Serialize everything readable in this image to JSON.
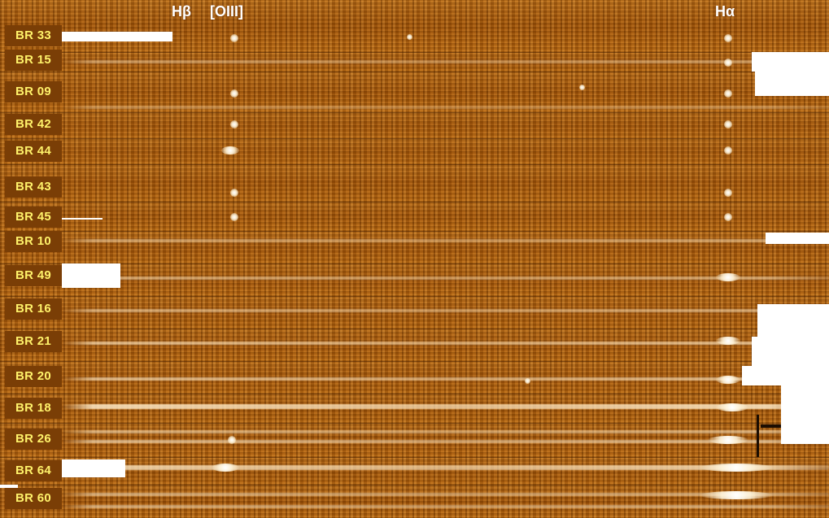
{
  "emission_lines": [
    {
      "name": "Hβ"
    },
    {
      "name": "[OIII]"
    },
    {
      "name": "Hα"
    }
  ],
  "spectra": [
    {
      "label": "BR 33"
    },
    {
      "label": "BR 15"
    },
    {
      "label": "BR 09"
    },
    {
      "label": "BR 42"
    },
    {
      "label": "BR 44"
    },
    {
      "label": "BR 43"
    },
    {
      "label": "BR 45"
    },
    {
      "label": "BR 10"
    },
    {
      "label": "BR 49"
    },
    {
      "label": "BR 16"
    },
    {
      "label": "BR 21"
    },
    {
      "label": "BR 20"
    },
    {
      "label": "BR 18"
    },
    {
      "label": "BR 26"
    },
    {
      "label": "BR 64"
    },
    {
      "label": "BR 60"
    }
  ],
  "colors": {
    "background": "#a85d0c",
    "label_box": "#7a3e06",
    "label_text": "#fff26a",
    "line_label_text": "#ffffff"
  }
}
